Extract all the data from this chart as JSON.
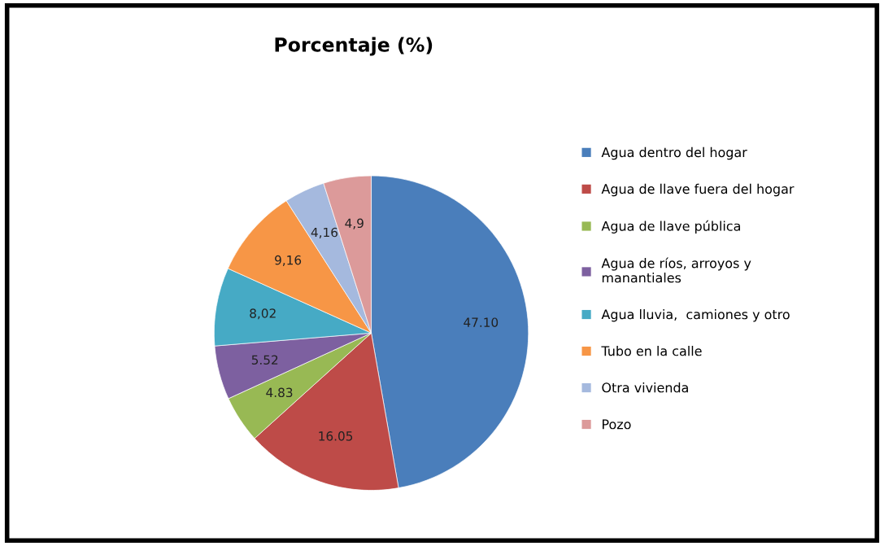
{
  "chart_data": {
    "type": "pie",
    "title": "Porcentaje (%)",
    "categories": [
      "Agua dentro del hogar",
      "Agua de llave fuera del hogar",
      "Agua de llave pública",
      "Agua de ríos, arroyos y\nmanantiales",
      "Agua lluvia,  camiones y otro",
      "Tubo en la calle",
      "Otra vivienda",
      "Pozo"
    ],
    "values": [
      47.1,
      16.05,
      4.83,
      5.52,
      8.02,
      9.16,
      4.16,
      4.9
    ],
    "value_labels": [
      "47.10",
      "16.05",
      "4.83",
      "5.52",
      "8,02",
      "9,16",
      "4,16",
      "4,9"
    ],
    "colors": [
      "#4a7ebb",
      "#be4b48",
      "#98b954",
      "#7d60a0",
      "#46aac5",
      "#f79646",
      "#a5b9de",
      "#dc9a9a"
    ],
    "legend": "right"
  }
}
